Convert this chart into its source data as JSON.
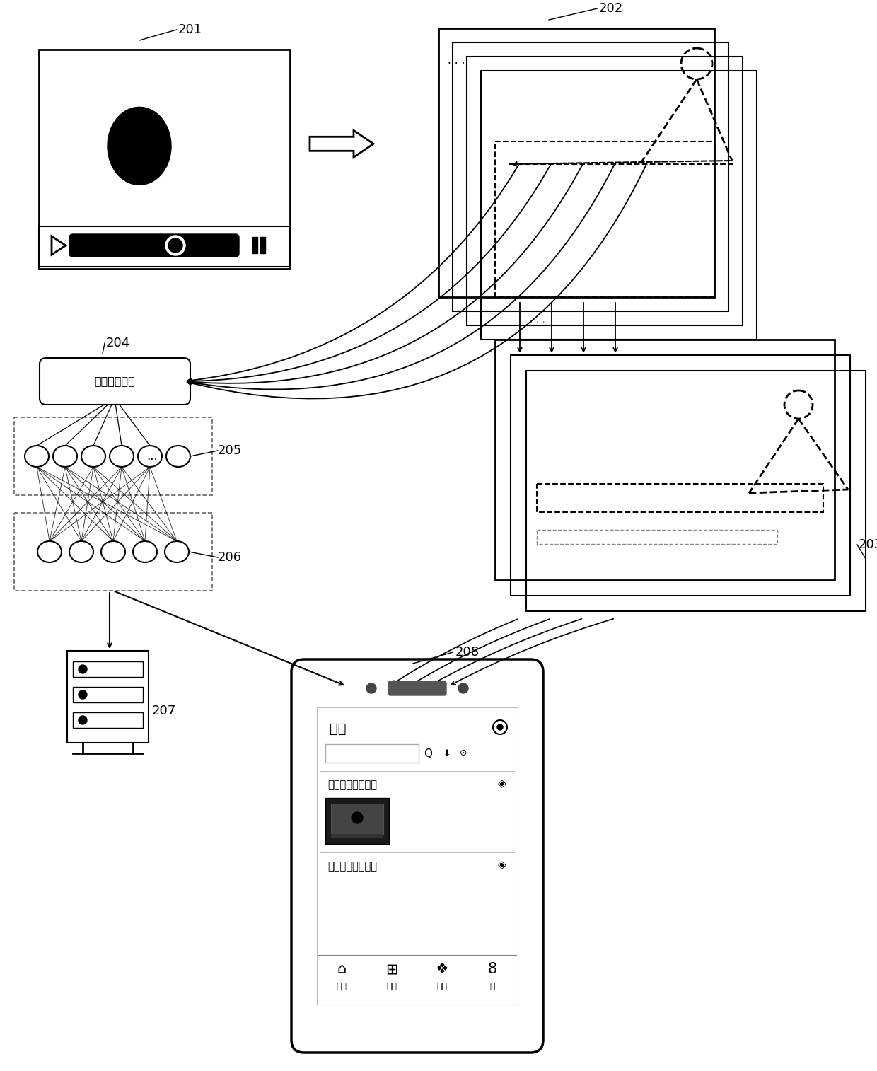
{
  "bg_color": "#ffffff",
  "label_201": "201",
  "label_202": "202",
  "label_203": "203",
  "label_204": "204",
  "label_205": "205",
  "label_206": "206",
  "label_207": "207",
  "label_208": "208",
  "text_search_engine": "图像搜索引擎",
  "text_recommend": "推荐",
  "text_tag1": "第一视频类型标签",
  "text_tag2": "第二视频类型标签",
  "text_home": "首页",
  "text_category": "分类",
  "text_featured": "精选",
  "text_me": "我"
}
